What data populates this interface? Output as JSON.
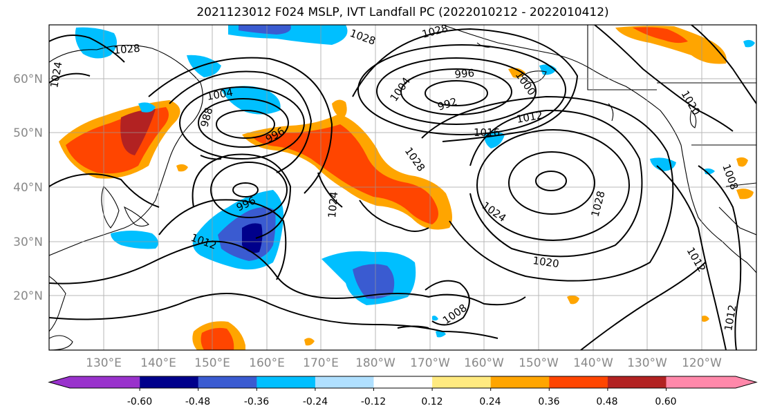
{
  "title": "2021123012 F024 MSLP, IVT Landfall PC (2022010212 - 2022010412)",
  "lat_labels": [
    "60°N",
    "50°N",
    "40°N",
    "30°N",
    "20°N"
  ],
  "lon_labels": [
    "130°E",
    "140°E",
    "150°E",
    "160°E",
    "170°E",
    "180°W",
    "170°W",
    "160°W",
    "150°W",
    "140°W",
    "130°W",
    "120°W"
  ],
  "colorbar": {
    "colors": [
      "#9932cc",
      "#00008b",
      "#3a5bd1",
      "#00bfff",
      "#b0e0ff",
      "#ffffff",
      "#ffea80",
      "#ffa500",
      "#ff4500",
      "#b22222",
      "#ff88aa"
    ],
    "tick_labels": [
      "-0.60",
      "-0.48",
      "-0.36",
      "-0.24",
      "-0.12",
      "0.12",
      "0.24",
      "0.36",
      "0.48",
      "0.60"
    ]
  },
  "contour_labels": [
    "1024",
    "1028",
    "1028",
    "1028",
    "988",
    "996",
    "1004",
    "1004",
    "996",
    "992",
    "1000",
    "1012",
    "1016",
    "1028",
    "1024",
    "996",
    "1012",
    "1024",
    "1028",
    "1020",
    "1008",
    "1012",
    "1012",
    "1020",
    "1008"
  ]
}
